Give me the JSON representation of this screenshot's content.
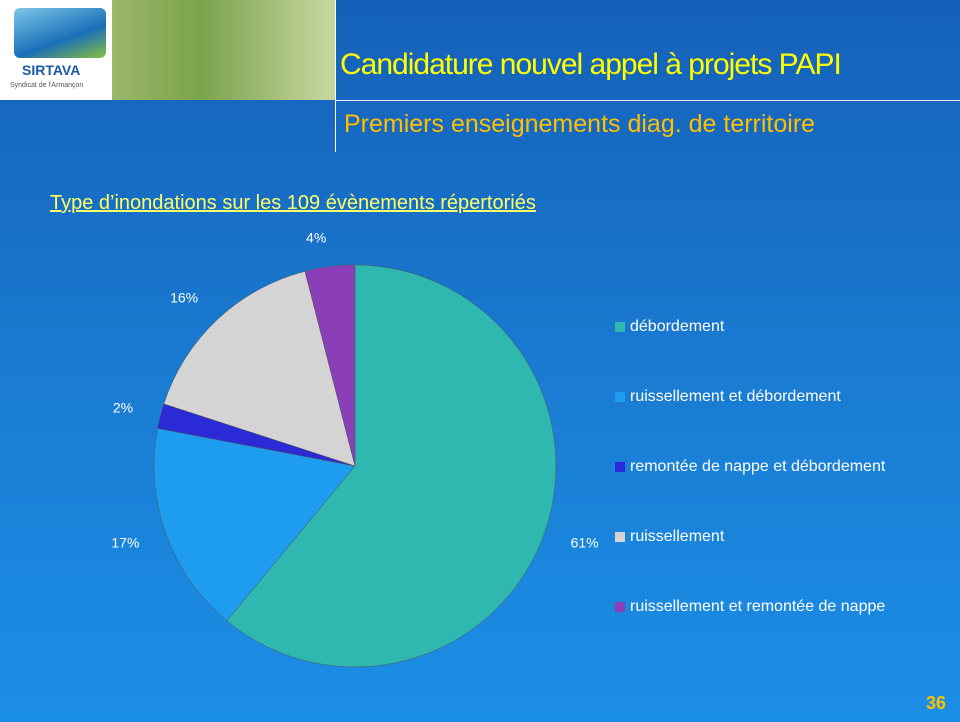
{
  "header": {
    "logo_text": "SIRTAVA",
    "logo_subtext": "Syndicat de l'Armançon",
    "title": "Candidature nouvel appel à projets PAPI",
    "subtitle": "Premiers enseignements diag. de territoire"
  },
  "chart_data": {
    "type": "pie",
    "title": "Type d’inondations sur les 109 évènements répertoriés",
    "categories": [
      "débordement",
      "ruissellement et débordement",
      "remontée de nappe et débordement",
      "ruissellement",
      "ruissellement et remontée de nappe"
    ],
    "values": [
      61,
      17,
      2,
      16,
      4
    ],
    "value_labels": [
      "61%",
      "17%",
      "2%",
      "16%",
      "4%"
    ],
    "colors": [
      "#2fb8b0",
      "#1d9cf0",
      "#2a2ad6",
      "#d4d4d4",
      "#8a3fb8"
    ]
  },
  "page_number": 36
}
